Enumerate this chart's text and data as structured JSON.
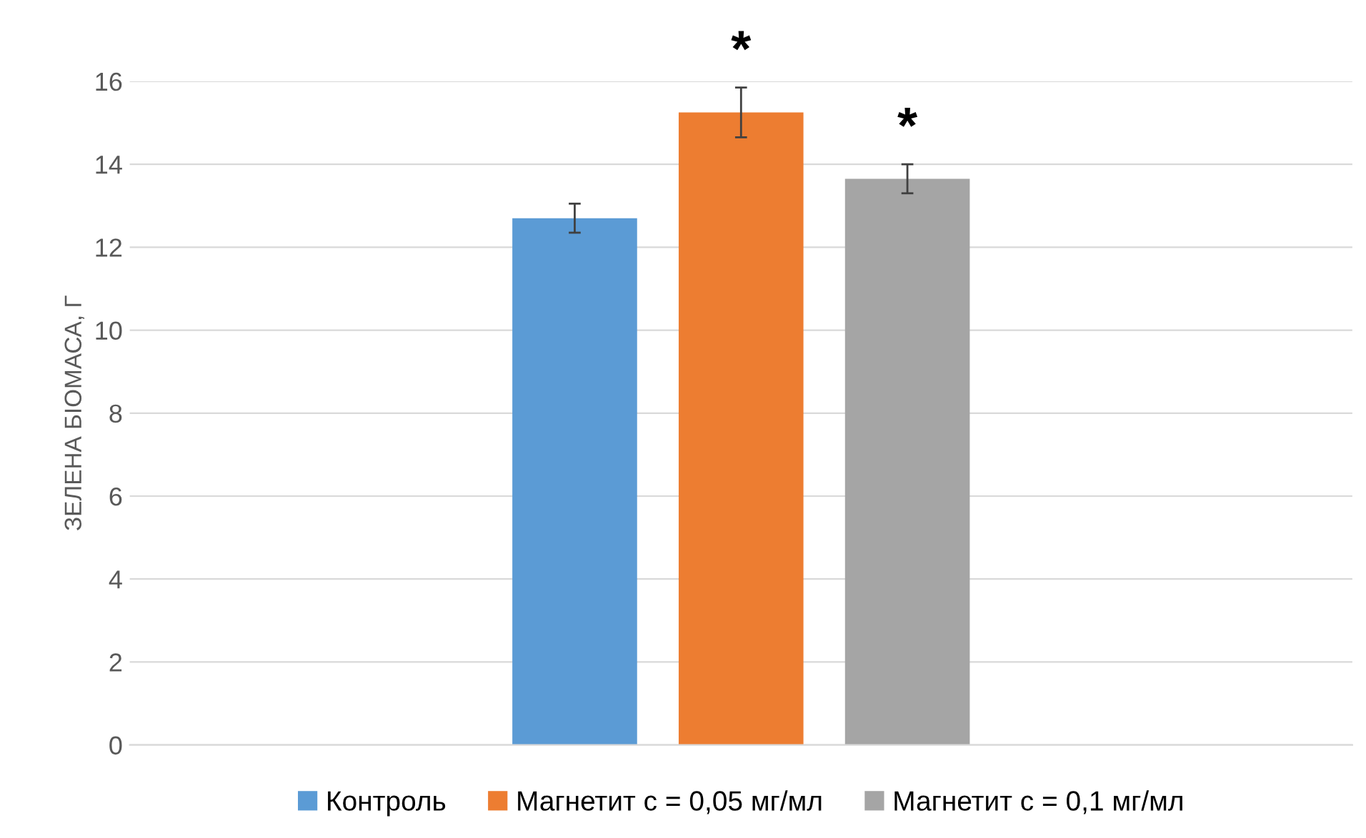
{
  "chart_data": {
    "type": "bar",
    "ylabel": "ЗЕЛЕНА БІОМАСА, Г",
    "categories": [
      null
    ],
    "series": [
      {
        "name": "Контроль",
        "color": "#5b9bd5",
        "values": [
          12.7
        ],
        "errors": [
          0.35
        ]
      },
      {
        "name": "Магнетит c = 0,05 мг/мл",
        "color": "#ed7d31",
        "values": [
          15.25
        ],
        "errors": [
          0.6
        ]
      },
      {
        "name": "Магнетит c = 0,1 мг/мл",
        "color": "#a5a5a5",
        "values": [
          13.65
        ],
        "errors": [
          0.35
        ]
      }
    ],
    "annotations": [
      "*",
      "*"
    ],
    "ylim": [
      0,
      16
    ],
    "yticks": [
      0,
      2,
      4,
      6,
      8,
      10,
      12,
      14,
      16
    ],
    "grid": "y",
    "legend": "bottom"
  }
}
